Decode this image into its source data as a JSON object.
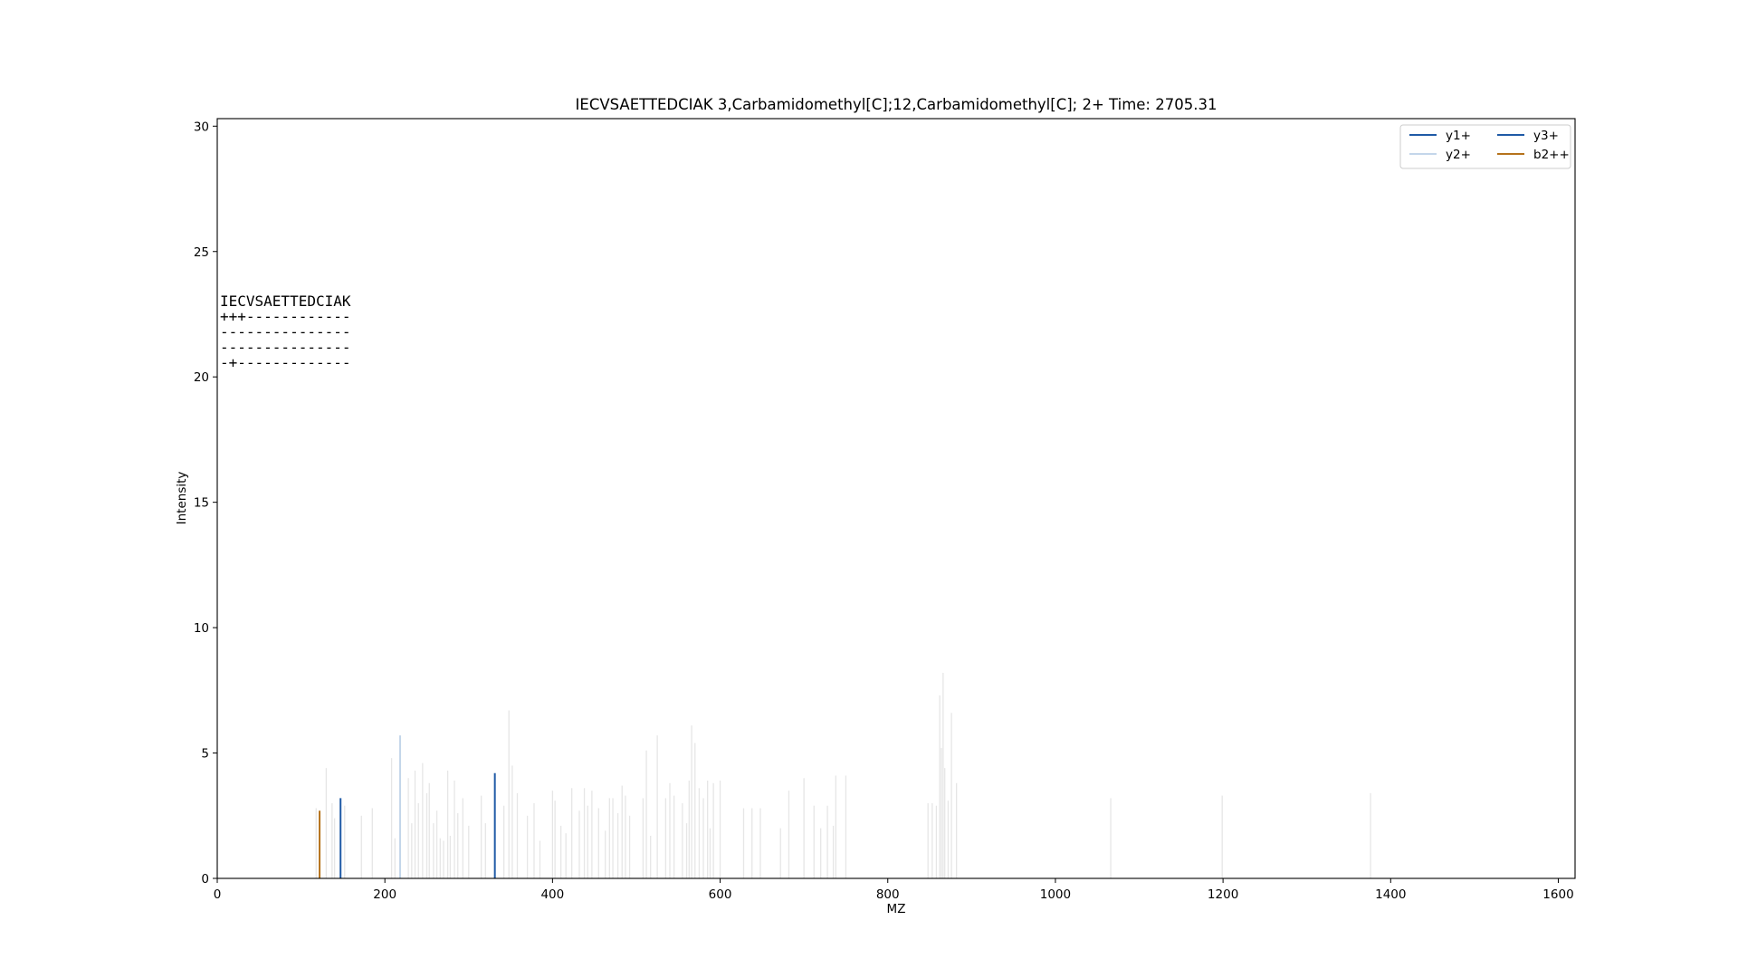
{
  "chart_data": {
    "type": "bar",
    "title": "IECVSAETTEDCIAK 3,Carbamidomethyl[C];12,Carbamidomethyl[C]; 2+ Time: 2705.31",
    "xlabel": "MZ",
    "ylabel": "Intensity",
    "xlim": [
      0,
      1620
    ],
    "ylim": [
      0,
      30.3
    ],
    "xticks": [
      0,
      200,
      400,
      600,
      800,
      1000,
      1200,
      1400,
      1600
    ],
    "yticks": [
      0,
      5,
      10,
      15,
      20,
      25,
      30
    ],
    "grid": false,
    "legend_position": "top-right",
    "colors": {
      "background_peak": "#e6e6e6",
      "y1+": "#1f5aa6",
      "y2+": "#c4d6ea",
      "y3+": "#1f5aa6",
      "b2++": "#b5731c"
    },
    "series": [
      {
        "name": "y1+",
        "x": [
          147.1
        ],
        "y": [
          3.2
        ]
      },
      {
        "name": "y2+",
        "x": [
          218.2
        ],
        "y": [
          5.7
        ]
      },
      {
        "name": "y3+",
        "x": [
          331.2
        ],
        "y": [
          4.2
        ]
      },
      {
        "name": "b2++",
        "x": [
          122.1
        ],
        "y": [
          2.7
        ]
      }
    ],
    "background_peaks": {
      "x": [
        118,
        130,
        137,
        140,
        152,
        172,
        185,
        208,
        212,
        228,
        232,
        236,
        240,
        245,
        250,
        253,
        258,
        262,
        266,
        270,
        275,
        278,
        283,
        287,
        293,
        300,
        315,
        320,
        342,
        348,
        352,
        358,
        370,
        378,
        385,
        400,
        403,
        410,
        416,
        423,
        432,
        438,
        442,
        447,
        455,
        463,
        468,
        472,
        478,
        483,
        487,
        492,
        508,
        512,
        517,
        525,
        535,
        540,
        545,
        555,
        560,
        563,
        566,
        570,
        575,
        580,
        585,
        588,
        592,
        600,
        628,
        638,
        648,
        672,
        682,
        700,
        712,
        720,
        728,
        735,
        738,
        750,
        848,
        853,
        858,
        862,
        864,
        866,
        868,
        872,
        876,
        882,
        1066,
        1199,
        1376
      ],
      "y": [
        2.8,
        4.4,
        3.0,
        2.4,
        2.9,
        2.5,
        2.8,
        4.8,
        1.6,
        4.0,
        2.2,
        4.3,
        3.0,
        4.6,
        3.4,
        3.8,
        2.2,
        2.7,
        1.6,
        1.5,
        4.3,
        1.7,
        3.9,
        2.6,
        3.2,
        2.1,
        3.3,
        2.2,
        2.9,
        6.7,
        4.5,
        3.4,
        2.5,
        3.0,
        1.5,
        3.5,
        3.1,
        2.1,
        1.8,
        3.6,
        2.7,
        3.6,
        2.9,
        3.5,
        2.8,
        1.9,
        3.2,
        3.2,
        2.6,
        3.7,
        3.3,
        2.5,
        3.2,
        5.1,
        1.7,
        5.7,
        3.2,
        3.8,
        3.3,
        3.0,
        2.2,
        3.9,
        6.1,
        5.4,
        3.6,
        3.2,
        3.9,
        2.0,
        3.8,
        3.9,
        2.8,
        2.8,
        2.8,
        2.0,
        3.5,
        4.0,
        2.9,
        2.0,
        2.9,
        2.1,
        4.1,
        4.1,
        3.0,
        3.0,
        2.9,
        7.3,
        5.2,
        8.2,
        4.4,
        3.1,
        6.6,
        3.8,
        3.2,
        3.3,
        3.4
      ]
    },
    "annotation": {
      "sequence": "IECVSAETTEDCIAK",
      "lines": [
        "+++------------",
        "---------------",
        "---------------",
        "-+-------------"
      ]
    }
  }
}
